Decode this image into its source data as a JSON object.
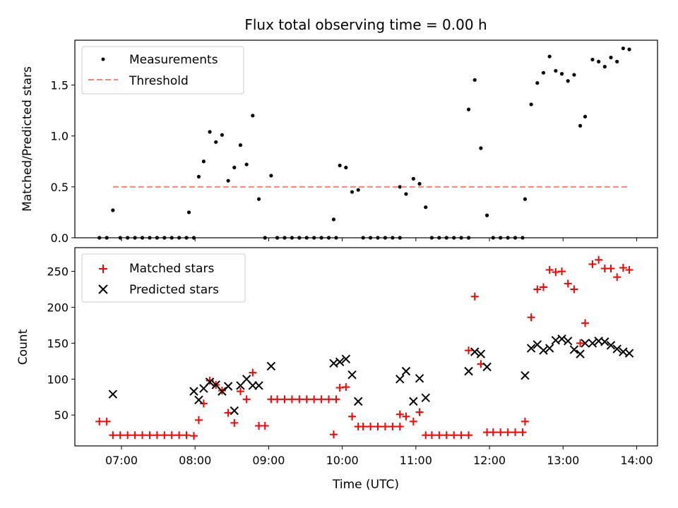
{
  "figure": {
    "title": "Flux total observing time = 0.00 h",
    "xlabel": "Time (UTC)"
  },
  "chart_data": [
    {
      "type": "scatter",
      "ylabel": "Matched/Predicted stars",
      "xlim": [
        "06:22",
        "14:17"
      ],
      "ylim": [
        0,
        1.94
      ],
      "yticks": [
        0.0,
        0.5,
        1.0,
        1.5
      ],
      "ytick_labels": [
        "0.0",
        "0.5",
        "1.0",
        "1.5"
      ],
      "legend_position": "top-left",
      "series": [
        {
          "name": "Measurements",
          "marker": "dot",
          "color": "#000000",
          "points": [
            [
              "06:42",
              0
            ],
            [
              "06:48",
              0
            ],
            [
              "06:53",
              0.27
            ],
            [
              "06:59",
              0
            ],
            [
              "07:05",
              0
            ],
            [
              "07:11",
              0
            ],
            [
              "07:17",
              0
            ],
            [
              "07:23",
              0
            ],
            [
              "07:29",
              0
            ],
            [
              "07:35",
              0
            ],
            [
              "07:41",
              0
            ],
            [
              "07:47",
              0
            ],
            [
              "07:53",
              0
            ],
            [
              "07:59",
              0
            ],
            [
              "07:55",
              0.25
            ],
            [
              "08:03",
              0.6
            ],
            [
              "08:07",
              0.75
            ],
            [
              "08:12",
              1.04
            ],
            [
              "08:17",
              0.94
            ],
            [
              "08:22",
              1.01
            ],
            [
              "08:27",
              0.56
            ],
            [
              "08:32",
              0.69
            ],
            [
              "08:37",
              0.91
            ],
            [
              "08:42",
              0.72
            ],
            [
              "08:47",
              1.2
            ],
            [
              "08:52",
              0.38
            ],
            [
              "08:57",
              0
            ],
            [
              "09:02",
              0.61
            ],
            [
              "09:07",
              0
            ],
            [
              "09:13",
              0
            ],
            [
              "09:19",
              0
            ],
            [
              "09:25",
              0
            ],
            [
              "09:31",
              0
            ],
            [
              "09:37",
              0
            ],
            [
              "09:43",
              0
            ],
            [
              "09:49",
              0
            ],
            [
              "09:55",
              0
            ],
            [
              "09:53",
              0.18
            ],
            [
              "09:58",
              0.71
            ],
            [
              "10:03",
              0.69
            ],
            [
              "10:08",
              0.45
            ],
            [
              "10:13",
              0.47
            ],
            [
              "10:17",
              0
            ],
            [
              "10:23",
              0
            ],
            [
              "10:29",
              0
            ],
            [
              "10:35",
              0
            ],
            [
              "10:41",
              0
            ],
            [
              "10:47",
              0
            ],
            [
              "10:47",
              0.5
            ],
            [
              "10:52",
              0.43
            ],
            [
              "10:58",
              0.58
            ],
            [
              "11:03",
              0.53
            ],
            [
              "11:08",
              0.3
            ],
            [
              "11:13",
              0
            ],
            [
              "11:19",
              0
            ],
            [
              "11:25",
              0
            ],
            [
              "11:31",
              0
            ],
            [
              "11:37",
              0
            ],
            [
              "11:43",
              0
            ],
            [
              "11:43",
              1.26
            ],
            [
              "11:48",
              1.55
            ],
            [
              "11:53",
              0.88
            ],
            [
              "11:58",
              0.22
            ],
            [
              "12:03",
              0
            ],
            [
              "12:09",
              0
            ],
            [
              "12:15",
              0
            ],
            [
              "12:21",
              0
            ],
            [
              "12:27",
              0
            ],
            [
              "12:29",
              0.38
            ],
            [
              "12:34",
              1.31
            ],
            [
              "12:39",
              1.52
            ],
            [
              "12:44",
              1.62
            ],
            [
              "12:49",
              1.78
            ],
            [
              "12:54",
              1.64
            ],
            [
              "12:59",
              1.61
            ],
            [
              "13:04",
              1.54
            ],
            [
              "13:09",
              1.6
            ],
            [
              "13:14",
              1.1
            ],
            [
              "13:18",
              1.19
            ],
            [
              "13:24",
              1.75
            ],
            [
              "13:29",
              1.73
            ],
            [
              "13:34",
              1.68
            ],
            [
              "13:39",
              1.77
            ],
            [
              "13:44",
              1.73
            ],
            [
              "13:49",
              1.86
            ],
            [
              "13:54",
              1.85
            ]
          ]
        },
        {
          "name": "Threshold",
          "marker": "dashed-line",
          "color": "#ff7f7f",
          "points": [
            [
              "06:53",
              0.5
            ],
            [
              "13:54",
              0.5
            ]
          ]
        }
      ]
    },
    {
      "type": "scatter",
      "ylabel": "Count",
      "xlim": [
        "06:22",
        "14:17"
      ],
      "ylim": [
        7,
        283
      ],
      "yticks": [
        50,
        100,
        150,
        200,
        250
      ],
      "ytick_labels": [
        "50",
        "100",
        "150",
        "200",
        "250"
      ],
      "xticks": [
        "07:00",
        "08:00",
        "09:00",
        "10:00",
        "11:00",
        "12:00",
        "13:00",
        "14:00"
      ],
      "xtick_labels": [
        "07:00",
        "08:00",
        "09:00",
        "10:00",
        "11:00",
        "12:00",
        "13:00",
        "14:00"
      ],
      "legend_position": "top-left",
      "series": [
        {
          "name": "Matched stars",
          "marker": "plus",
          "color": "#ff0000",
          "points": [
            [
              "06:42",
              41
            ],
            [
              "06:48",
              41
            ],
            [
              "06:53",
              22
            ],
            [
              "06:59",
              22
            ],
            [
              "07:05",
              22
            ],
            [
              "07:11",
              22
            ],
            [
              "07:17",
              22
            ],
            [
              "07:23",
              22
            ],
            [
              "07:29",
              22
            ],
            [
              "07:35",
              22
            ],
            [
              "07:41",
              22
            ],
            [
              "07:47",
              22
            ],
            [
              "07:53",
              22
            ],
            [
              "07:59",
              21
            ],
            [
              "08:03",
              43
            ],
            [
              "08:07",
              66
            ],
            [
              "08:12",
              98
            ],
            [
              "08:17",
              92
            ],
            [
              "08:22",
              84
            ],
            [
              "08:27",
              53
            ],
            [
              "08:32",
              39
            ],
            [
              "08:37",
              83
            ],
            [
              "08:42",
              72
            ],
            [
              "08:47",
              109
            ],
            [
              "08:52",
              35
            ],
            [
              "08:57",
              35
            ],
            [
              "09:02",
              72
            ],
            [
              "09:07",
              72
            ],
            [
              "09:13",
              72
            ],
            [
              "09:19",
              72
            ],
            [
              "09:25",
              72
            ],
            [
              "09:31",
              72
            ],
            [
              "09:37",
              72
            ],
            [
              "09:43",
              72
            ],
            [
              "09:49",
              72
            ],
            [
              "09:55",
              72
            ],
            [
              "09:53",
              23
            ],
            [
              "09:58",
              88
            ],
            [
              "10:03",
              89
            ],
            [
              "10:08",
              48
            ],
            [
              "10:13",
              34
            ],
            [
              "10:17",
              34
            ],
            [
              "10:23",
              34
            ],
            [
              "10:29",
              34
            ],
            [
              "10:35",
              34
            ],
            [
              "10:41",
              34
            ],
            [
              "10:47",
              34
            ],
            [
              "10:47",
              51
            ],
            [
              "10:52",
              48
            ],
            [
              "10:58",
              41
            ],
            [
              "11:03",
              54
            ],
            [
              "11:08",
              22
            ],
            [
              "11:13",
              22
            ],
            [
              "11:19",
              22
            ],
            [
              "11:25",
              22
            ],
            [
              "11:31",
              22
            ],
            [
              "11:37",
              22
            ],
            [
              "11:43",
              22
            ],
            [
              "11:43",
              140
            ],
            [
              "11:48",
              215
            ],
            [
              "11:53",
              121
            ],
            [
              "11:58",
              26
            ],
            [
              "12:03",
              26
            ],
            [
              "12:09",
              26
            ],
            [
              "12:15",
              26
            ],
            [
              "12:21",
              26
            ],
            [
              "12:27",
              26
            ],
            [
              "12:29",
              41
            ],
            [
              "12:34",
              186
            ],
            [
              "12:39",
              225
            ],
            [
              "12:44",
              228
            ],
            [
              "12:49",
              252
            ],
            [
              "12:54",
              249
            ],
            [
              "12:59",
              250
            ],
            [
              "13:04",
              233
            ],
            [
              "13:09",
              225
            ],
            [
              "13:14",
              150
            ],
            [
              "13:18",
              178
            ],
            [
              "13:24",
              260
            ],
            [
              "13:29",
              266
            ],
            [
              "13:34",
              254
            ],
            [
              "13:39",
              254
            ],
            [
              "13:44",
              242
            ],
            [
              "13:49",
              255
            ],
            [
              "13:54",
              252
            ]
          ]
        },
        {
          "name": "Predicted stars",
          "marker": "x",
          "color": "#000000",
          "points": [
            [
              "06:53",
              79
            ],
            [
              "07:59",
              83
            ],
            [
              "08:03",
              71
            ],
            [
              "08:07",
              87
            ],
            [
              "08:12",
              96
            ],
            [
              "08:17",
              92
            ],
            [
              "08:22",
              83
            ],
            [
              "08:27",
              90
            ],
            [
              "08:32",
              56
            ],
            [
              "08:37",
              91
            ],
            [
              "08:42",
              100
            ],
            [
              "08:47",
              91
            ],
            [
              "08:52",
              91
            ],
            [
              "09:02",
              118
            ],
            [
              "09:53",
              122
            ],
            [
              "09:58",
              124
            ],
            [
              "10:03",
              128
            ],
            [
              "10:08",
              106
            ],
            [
              "10:13",
              69
            ],
            [
              "10:47",
              100
            ],
            [
              "10:52",
              111
            ],
            [
              "10:58",
              69
            ],
            [
              "11:03",
              101
            ],
            [
              "11:08",
              74
            ],
            [
              "11:43",
              111
            ],
            [
              "11:48",
              138
            ],
            [
              "11:53",
              135
            ],
            [
              "11:58",
              117
            ],
            [
              "12:29",
              105
            ],
            [
              "12:34",
              143
            ],
            [
              "12:39",
              148
            ],
            [
              "12:44",
              140
            ],
            [
              "12:49",
              143
            ],
            [
              "12:54",
              154
            ],
            [
              "12:59",
              156
            ],
            [
              "13:04",
              153
            ],
            [
              "13:09",
              141
            ],
            [
              "13:14",
              135
            ],
            [
              "13:18",
              150
            ],
            [
              "13:24",
              150
            ],
            [
              "13:29",
              153
            ],
            [
              "13:34",
              152
            ],
            [
              "13:39",
              147
            ],
            [
              "13:44",
              142
            ],
            [
              "13:49",
              138
            ],
            [
              "13:54",
              136
            ]
          ]
        }
      ]
    }
  ]
}
